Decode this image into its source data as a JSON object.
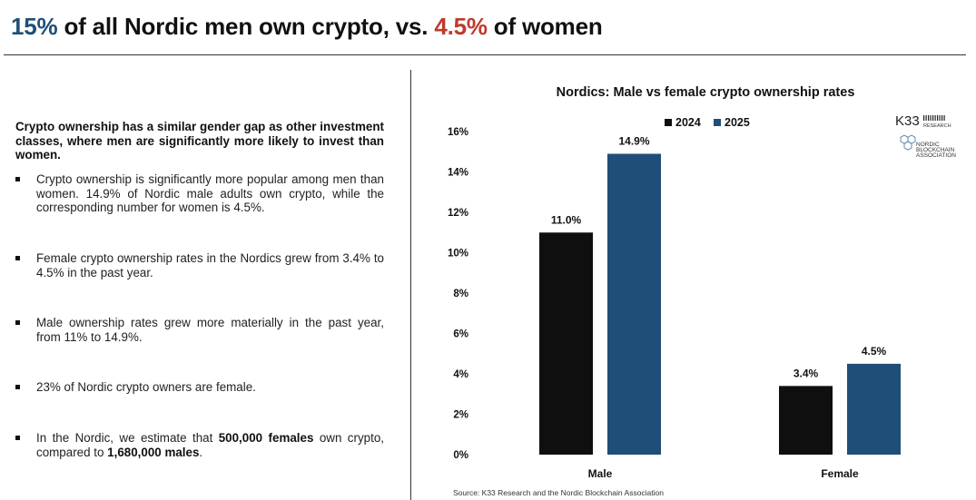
{
  "headline": {
    "men_pct": "15%",
    "part1": " of all Nordic men own crypto, vs. ",
    "women_pct": "4.5%",
    "part2": " of women"
  },
  "intro": "Crypto ownership has a similar gender gap as other investment classes, where men are significantly more likely to invest than women.",
  "bullets": [
    {
      "text": "Crypto ownership is significantly more popular among men than women. 14.9% of Nordic male adults own crypto, while the corresponding number for women is 4.5%."
    },
    {
      "text": "Female crypto ownership rates in the Nordics grew from 3.4% to 4.5% in the past year."
    },
    {
      "text": "Male ownership rates grew more materially in the past year, from 11% to 14.9%."
    },
    {
      "text": "23% of Nordic crypto owners are female."
    },
    {
      "text_a": "In the Nordic, we estimate that ",
      "bold_a": "500,000 females",
      "text_b": " own crypto, compared to ",
      "bold_b": "1,680,000 males",
      "text_c": "."
    }
  ],
  "logos": {
    "k33": "K33",
    "k33_sub": "RESEARCH",
    "nba_lines": [
      "NORDIC",
      "BLOCKCHAIN",
      "ASSOCIATION"
    ]
  },
  "source": "Source: K33 Research and the Nordic Blockchain Association",
  "colors": {
    "s2024": "#0f0f0f",
    "s2025": "#1f4e79",
    "blue_accent": "#1f4e79",
    "red_accent": "#c0392b"
  },
  "chart_data": {
    "type": "bar",
    "title": "Nordics: Male vs female crypto ownership rates",
    "categories": [
      "Male",
      "Female"
    ],
    "series": [
      {
        "name": "2024",
        "values": [
          11.0,
          3.4
        ],
        "labels": [
          "11.0%",
          "3.4%"
        ]
      },
      {
        "name": "2025",
        "values": [
          14.9,
          4.5
        ],
        "labels": [
          "14.9%",
          "4.5%"
        ]
      }
    ],
    "ylim": [
      0,
      16
    ],
    "yticks": [
      0,
      2,
      4,
      6,
      8,
      10,
      12,
      14,
      16
    ],
    "ytick_labels": [
      "0%",
      "2%",
      "4%",
      "6%",
      "8%",
      "10%",
      "12%",
      "14%",
      "16%"
    ],
    "xlabel": "",
    "ylabel": "",
    "grid": false,
    "legend_position": "top-center"
  }
}
